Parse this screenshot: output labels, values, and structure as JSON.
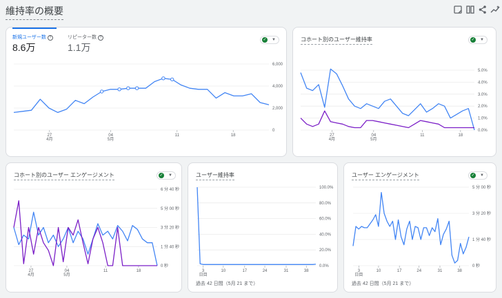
{
  "page": {
    "title": "維持率の概要",
    "icons": [
      "report-icon",
      "compare-icon",
      "share-icon",
      "insights-icon"
    ]
  },
  "new_vs_returning": {
    "tabs": [
      {
        "label": "新規ユーザー数",
        "value": "8.6万",
        "active": true
      },
      {
        "label": "リピーター数",
        "value": "1.1万",
        "active": false
      }
    ],
    "y_ticks": [
      "6,000",
      "4,000",
      "2,000",
      "0"
    ],
    "x_ticks": [
      {
        "day": "27",
        "month": "4月"
      },
      {
        "day": "04",
        "month": "5月"
      },
      {
        "day": "11",
        "month": ""
      },
      {
        "day": "18",
        "month": ""
      }
    ]
  },
  "cohort_retention": {
    "title": "コホート別のユーザー維持率",
    "y_ticks": [
      "5.0%",
      "4.0%",
      "3.0%",
      "2.0%",
      "1.0%",
      "0.0%"
    ],
    "x_ticks": [
      {
        "day": "27",
        "month": "4月"
      },
      {
        "day": "04",
        "month": "5月"
      },
      {
        "day": "11",
        "month": ""
      },
      {
        "day": "18",
        "month": ""
      }
    ]
  },
  "cohort_engagement": {
    "title": "コホート別のユーザー エンゲージメント",
    "y_ticks": [
      "6 分 40 秒",
      "5 分 00 秒",
      "3 分 20 秒",
      "1 分 40 秒",
      "0 秒"
    ],
    "x_ticks": [
      {
        "day": "27",
        "month": "4月"
      },
      {
        "day": "04",
        "month": "5月"
      },
      {
        "day": "11",
        "month": ""
      },
      {
        "day": "18",
        "month": ""
      }
    ]
  },
  "user_retention": {
    "title": "ユーザー維持率",
    "y_ticks": [
      "100.0%",
      "80.0%",
      "60.0%",
      "40.0%",
      "20.0%",
      "0.0%"
    ],
    "x_ticks": [
      "3\n日目",
      "10",
      "17",
      "24",
      "31",
      "38"
    ],
    "footer": "過去 42 日間（5月 21 まで）"
  },
  "user_engagement": {
    "title": "ユーザー エンゲージメント",
    "y_ticks": [
      "5 分 00 秒",
      "3 分 20 秒",
      "1 分 40 秒",
      "0 秒"
    ],
    "x_ticks": [
      "3\n日目",
      "10",
      "17",
      "24",
      "31",
      "38"
    ],
    "footer": "過去 42 日間（5月 21 まで）"
  },
  "colors": {
    "blue": "#4285f4",
    "purple": "#7b1fc7",
    "accent": "#1a73e8",
    "green": "#188038"
  },
  "chart_data": [
    {
      "type": "line",
      "name_ref": "new_vs_returning",
      "x": [
        "4/22",
        "4/23",
        "4/24",
        "4/25",
        "4/26",
        "4/27",
        "4/28",
        "4/29",
        "4/30",
        "5/1",
        "5/2",
        "5/3",
        "5/4",
        "5/5",
        "5/6",
        "5/7",
        "5/8",
        "5/9",
        "5/10",
        "5/11",
        "5/12",
        "5/13",
        "5/14",
        "5/15",
        "5/16",
        "5/17",
        "5/18",
        "5/19",
        "5/20",
        "5/21"
      ],
      "series": [
        {
          "values": [
            1600,
            1700,
            1800,
            2800,
            2000,
            1600,
            1900,
            2700,
            2400,
            3000,
            3500,
            3700,
            3700,
            3800,
            3800,
            3800,
            4400,
            4700,
            4600,
            4100,
            3800,
            3700,
            3700,
            2900,
            3400,
            3100,
            3100,
            3300,
            2500,
            2300
          ]
        }
      ],
      "ylim": [
        0,
        6000
      ]
    },
    {
      "type": "line",
      "name_ref": "cohort_retention",
      "series": [
        {
          "values": [
            4.8,
            3.5,
            3.3,
            3.8,
            1.9,
            5.1,
            4.7,
            3.7,
            2.6,
            2.0,
            1.8,
            2.2,
            2.0,
            1.8,
            2.4,
            2.6,
            2.0,
            1.4,
            1.2,
            1.7,
            2.2,
            1.5,
            1.8,
            2.2,
            2.0,
            1.0,
            1.3,
            1.6,
            1.8,
            0.0
          ]
        },
        {
          "values": [
            1.0,
            0.5,
            0.3,
            0.5,
            1.6,
            0.7,
            0.6,
            0.5,
            0.3,
            0.2,
            0.2,
            0.8,
            0.8,
            0.7,
            0.6,
            0.5,
            0.4,
            0.3,
            0.2,
            0.5,
            0.8,
            0.7,
            0.6,
            0.5,
            0.2,
            0.2,
            0.2,
            0.2,
            0.2,
            0.2
          ]
        }
      ],
      "ylim": [
        0,
        5
      ]
    },
    {
      "type": "line",
      "name_ref": "cohort_engagement",
      "series": [
        {
          "values": [
            200,
            110,
            160,
            140,
            280,
            160,
            200,
            120,
            160,
            100,
            140,
            200,
            120,
            180,
            140,
            60,
            140,
            220,
            160,
            180,
            140,
            210,
            180,
            130,
            210,
            190,
            140,
            120,
            120,
            0
          ]
        },
        {
          "values": [
            200,
            340,
            10,
            200,
            60,
            200,
            120,
            80,
            0,
            200,
            20,
            200,
            160,
            240,
            120,
            10,
            140,
            200,
            120,
            0,
            0,
            200,
            0,
            0,
            0,
            0,
            0,
            0,
            0,
            0
          ]
        }
      ],
      "ylim": [
        0,
        400
      ]
    },
    {
      "type": "line",
      "name_ref": "user_retention",
      "x_start": 1,
      "x_end": 42,
      "series": [
        {
          "values": [
            100,
            2.5,
            1.5,
            1.5,
            1.5,
            1.5,
            1.5,
            1.5,
            1.5,
            1.5,
            1.5,
            1.5,
            1.5,
            1.5,
            1.5,
            1.5,
            1.5,
            1.5,
            1.5,
            1.5,
            1.5,
            1.5,
            1.5,
            1.5,
            1.5,
            1.5,
            1.5,
            1.5,
            1.5,
            1.5,
            1.5,
            1.5,
            1.5,
            1.5,
            1.5,
            1.5,
            1.5,
            1.5,
            1.5,
            1.5,
            1.5,
            1.8
          ]
        }
      ],
      "ylim": [
        0,
        100
      ]
    },
    {
      "type": "line",
      "name_ref": "user_engagement",
      "x_start": 1,
      "x_end": 42,
      "series": [
        {
          "values": [
            75,
            150,
            140,
            150,
            145,
            145,
            160,
            175,
            195,
            150,
            280,
            200,
            170,
            150,
            170,
            100,
            175,
            110,
            80,
            140,
            170,
            100,
            150,
            145,
            100,
            145,
            145,
            115,
            145,
            130,
            180,
            80,
            120,
            140,
            170,
            40,
            10,
            20,
            85,
            45,
            70,
            110
          ]
        }
      ],
      "ylim": [
        0,
        300
      ]
    }
  ]
}
